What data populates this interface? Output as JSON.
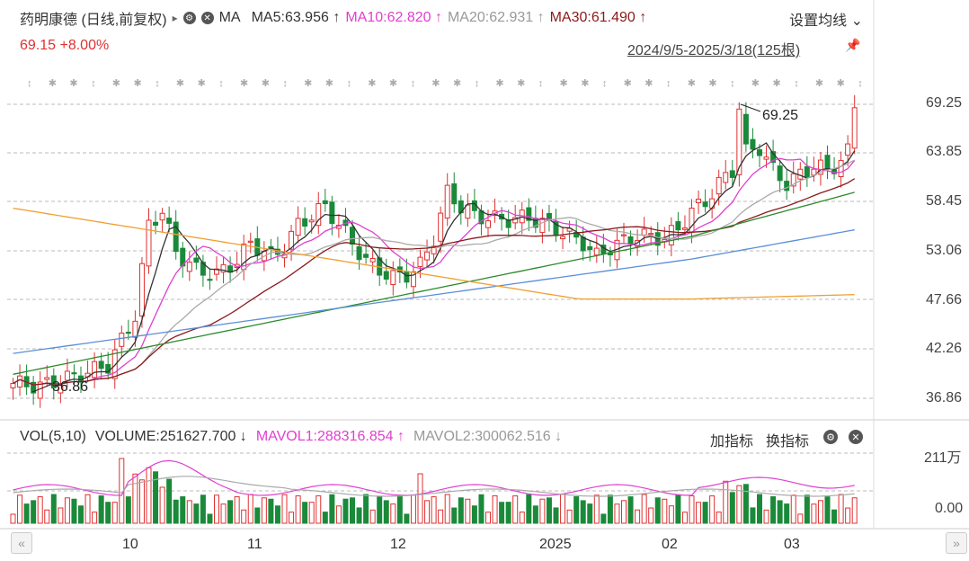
{
  "header": {
    "stock": "药明康德 (日线,前复权)",
    "arrow": "▸",
    "ma_label": "MA",
    "ma5": "MA5:63.956 ↑",
    "ma10": "MA10:62.820 ↑",
    "ma20": "MA20:62.931 ↑",
    "ma30": "MA30:61.490 ↑",
    "settings": "设置均线 ⌄"
  },
  "price_line": "69.15 +8.00%",
  "date_range": "2024/9/5-2025/3/18(125根)",
  "annotations": {
    "high": "69.25",
    "low": "36.86"
  },
  "y_labels": [
    "69.25",
    "63.85",
    "58.45",
    "53.06",
    "47.66",
    "42.26",
    "36.86"
  ],
  "volume": {
    "title": "VOL(5,10)",
    "volume": "VOLUME:251627.700 ↓",
    "mavol1": "MAVOL1:288316.854 ↑",
    "mavol2": "MAVOL2:300062.516 ↓",
    "add_indicator": "加指标",
    "switch_indicator": "换指标",
    "top_label": "211万",
    "zero_label": "0.00"
  },
  "x_labels": [
    "10",
    "11",
    "12",
    "2025",
    "02",
    "03"
  ],
  "colors": {
    "up": "#e03030",
    "down": "#1a8a3a",
    "ma5": "#333333",
    "ma10": "#e040d0",
    "ma20": "#aaaaaa",
    "ma30": "#8b1a1a",
    "ma60": "#2a8a2a",
    "ma120": "#5b8fd8",
    "ma250": "#f0a030"
  },
  "chart_data": {
    "type": "candlestick",
    "title": "药明康德 (日线,前复权)",
    "ylim": [
      36.86,
      69.25
    ],
    "y_ticks": [
      69.25,
      63.85,
      58.45,
      53.06,
      47.66,
      42.26,
      36.86
    ],
    "x_ticks": [
      "10",
      "11",
      "12",
      "2025",
      "02",
      "03"
    ],
    "last_close": 69.15,
    "change_pct": 8.0,
    "high": 69.25,
    "low": 36.86,
    "ma": {
      "MA5": 63.956,
      "MA10": 62.82,
      "MA20": 62.931,
      "MA30": 61.49
    },
    "volume": {
      "VOLUME": 251627.7,
      "MAVOL1": 288316.854,
      "MAVOL2": 300062.516,
      "max_label": "211万"
    },
    "bars": 125
  }
}
